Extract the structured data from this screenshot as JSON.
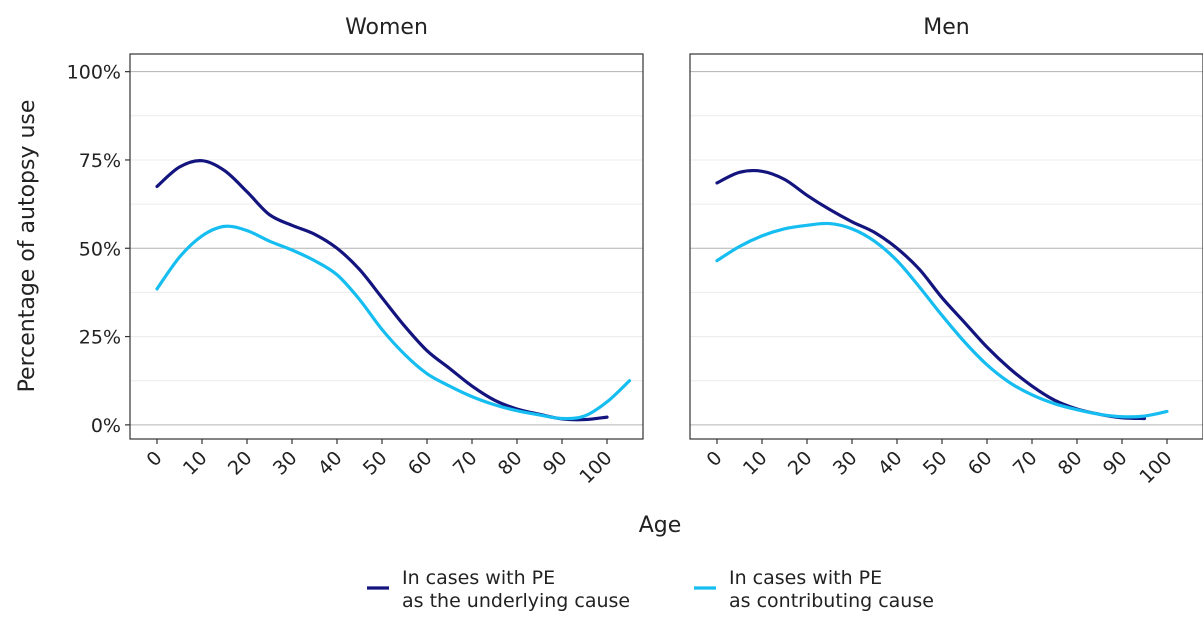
{
  "chart_data": {
    "type": "line",
    "xlabel": "Age",
    "ylabel": "Percentage of autopsy use",
    "xticks": [
      "0",
      "10",
      "20",
      "30",
      "40",
      "50",
      "60",
      "70",
      "80",
      "90",
      "100"
    ],
    "yticks": [
      "0%",
      "25%",
      "50%",
      "75%",
      "100%"
    ],
    "xlim": [
      -6,
      108
    ],
    "ylim": [
      -0.04,
      1.05
    ],
    "grid": true,
    "legend_position": "bottom",
    "series": [
      {
        "key": "underlying",
        "name_line1": "In cases with PE",
        "name_line2": "as the underlying cause",
        "color": "#13147e"
      },
      {
        "key": "contributing",
        "name_line1": "In cases with PE",
        "name_line2": "as contributing cause",
        "color": "#16bdf1"
      }
    ],
    "panels": [
      {
        "title": "Women",
        "underlying": {
          "x": [
            0,
            5,
            10,
            15,
            20,
            25,
            30,
            35,
            40,
            45,
            50,
            55,
            60,
            65,
            70,
            75,
            80,
            85,
            90,
            95,
            100
          ],
          "y": [
            0.675,
            0.73,
            0.748,
            0.72,
            0.66,
            0.595,
            0.565,
            0.54,
            0.5,
            0.44,
            0.36,
            0.28,
            0.21,
            0.16,
            0.11,
            0.07,
            0.045,
            0.03,
            0.017,
            0.015,
            0.022
          ]
        },
        "contributing": {
          "x": [
            0,
            5,
            10,
            15,
            20,
            25,
            30,
            35,
            40,
            45,
            50,
            55,
            60,
            65,
            70,
            75,
            80,
            85,
            90,
            95,
            100,
            105
          ],
          "y": [
            0.385,
            0.475,
            0.535,
            0.562,
            0.55,
            0.52,
            0.495,
            0.465,
            0.425,
            0.355,
            0.27,
            0.2,
            0.145,
            0.11,
            0.08,
            0.057,
            0.04,
            0.028,
            0.018,
            0.025,
            0.065,
            0.125
          ]
        }
      },
      {
        "title": "Men",
        "underlying": {
          "x": [
            0,
            5,
            10,
            15,
            20,
            25,
            30,
            35,
            40,
            45,
            50,
            55,
            60,
            65,
            70,
            75,
            80,
            85,
            90,
            95
          ],
          "y": [
            0.685,
            0.715,
            0.718,
            0.695,
            0.65,
            0.61,
            0.575,
            0.545,
            0.5,
            0.44,
            0.36,
            0.29,
            0.22,
            0.16,
            0.11,
            0.07,
            0.045,
            0.03,
            0.02,
            0.018
          ]
        },
        "contributing": {
          "x": [
            0,
            5,
            10,
            15,
            20,
            25,
            30,
            35,
            40,
            45,
            50,
            55,
            60,
            65,
            70,
            75,
            80,
            85,
            90,
            95,
            100
          ],
          "y": [
            0.465,
            0.505,
            0.535,
            0.555,
            0.565,
            0.57,
            0.555,
            0.52,
            0.465,
            0.39,
            0.31,
            0.235,
            0.17,
            0.12,
            0.085,
            0.06,
            0.043,
            0.03,
            0.023,
            0.025,
            0.038
          ]
        }
      }
    ]
  }
}
